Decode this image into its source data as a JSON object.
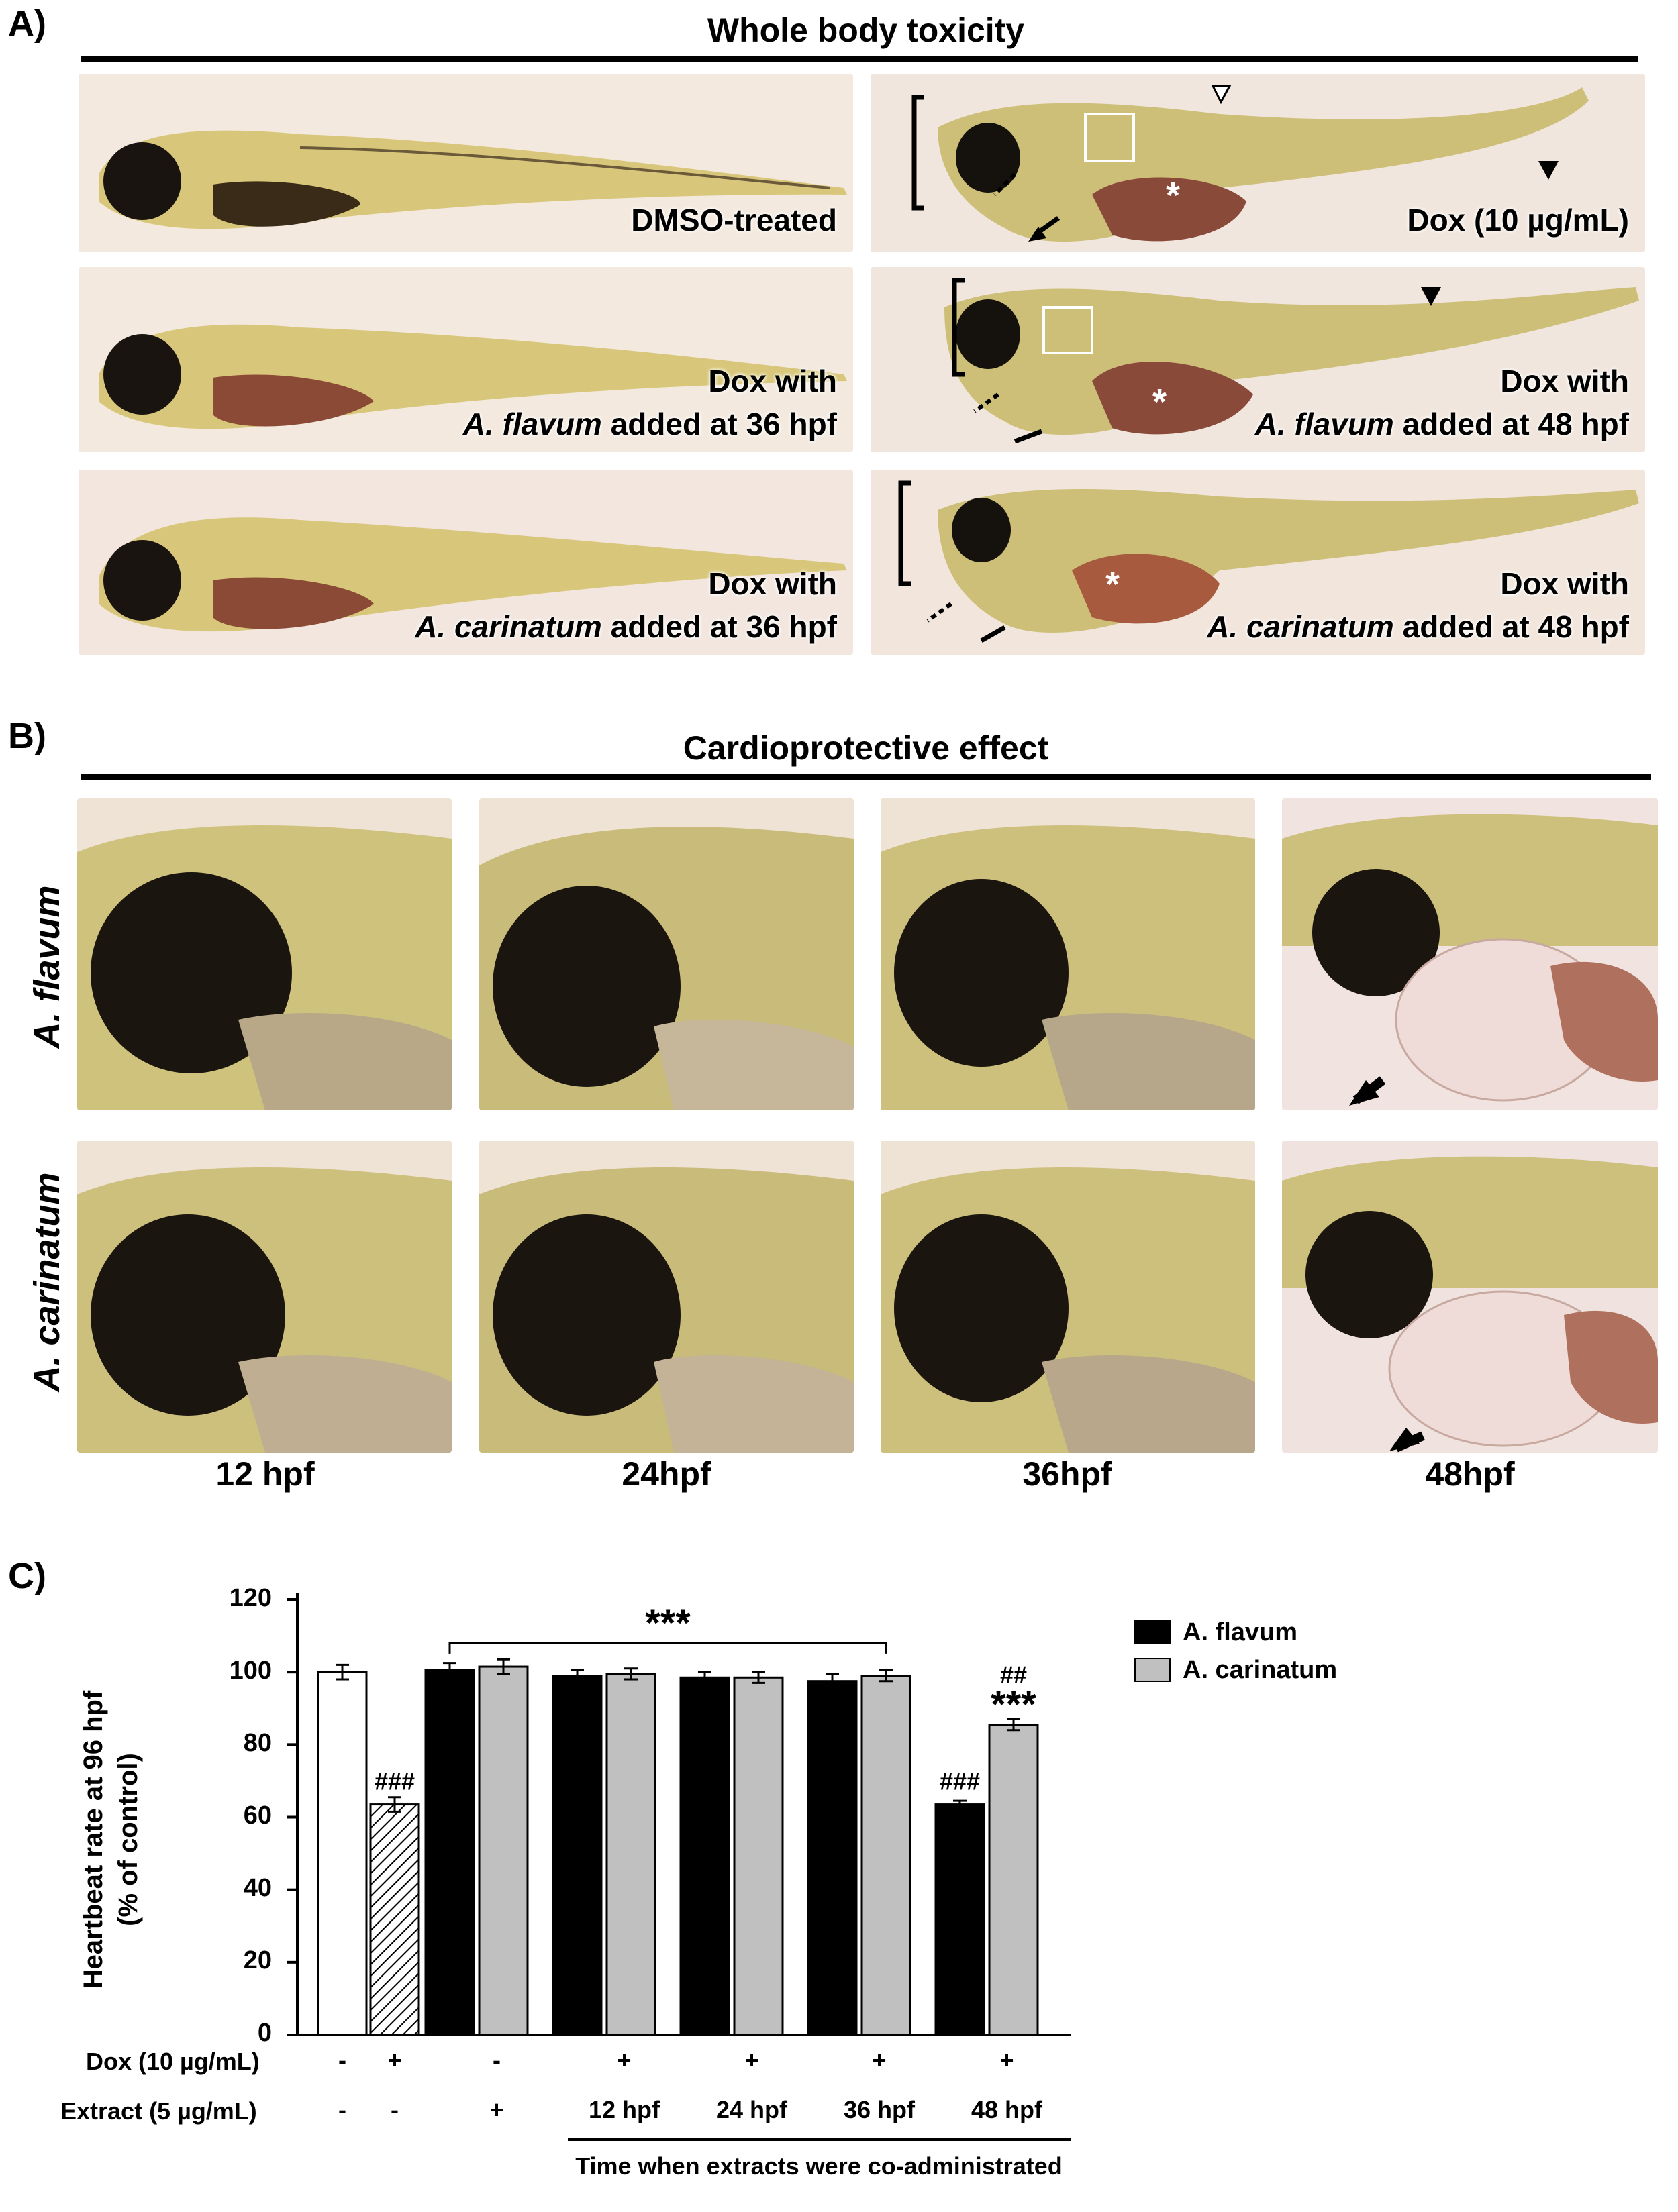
{
  "panelA": {
    "letter": "A)",
    "title": "Whole body toxicity",
    "images": [
      {
        "lines": [
          "DMSO-treated"
        ],
        "italic": [
          false
        ]
      },
      {
        "lines": [
          "Dox (10 µg/mL)"
        ],
        "italic": [
          false
        ]
      },
      {
        "lines": [
          "Dox with",
          "A. flavum added at 36 hpf"
        ],
        "species": "A. flavum",
        "rest": " added at 36 hpf"
      },
      {
        "lines": [
          "Dox with",
          "A. flavum added at 48 hpf"
        ],
        "species": "A. flavum",
        "rest": " added at 48 hpf"
      },
      {
        "lines": [
          "Dox with",
          "A. carinatum added at 36 hpf"
        ],
        "species": "A. carinatum",
        "rest": " added at 36 hpf"
      },
      {
        "lines": [
          "Dox with",
          "A. carinatum added at 48 hpf"
        ],
        "species": "A. carinatum",
        "rest": " added at 48 hpf"
      }
    ],
    "dox_with": "Dox with",
    "dmso": "DMSO-treated",
    "dox10": "Dox (10 µg/mL)",
    "asterisk": "*"
  },
  "panelB": {
    "letter": "B)",
    "title": "Cardioprotective effect",
    "rows": [
      "A. flavum",
      "A. carinatum"
    ],
    "timepoints": [
      "12 hpf",
      "24hpf",
      "36hpf",
      "48hpf"
    ]
  },
  "panelC": {
    "letter": "C)",
    "chart_data": {
      "type": "bar",
      "ylabel_line1": "Heartbeat rate at 96 hpf",
      "ylabel_line2": "(% of control)",
      "ylim": [
        0,
        120
      ],
      "yticks": [
        "0",
        "20",
        "40",
        "60",
        "80",
        "100",
        "120"
      ],
      "legend": [
        "A. flavum",
        "A. carinatum"
      ],
      "legend_placement": "top-right",
      "controls": [
        {
          "name": "control",
          "value": 100,
          "error": 2,
          "fill": "#ffffff"
        },
        {
          "name": "dox",
          "value": 63.5,
          "error": 2,
          "fill": "hatched",
          "annotation": "###"
        }
      ],
      "groups": [
        {
          "label": "+",
          "flavum": 100.5,
          "carinatum": 101.5,
          "err_f": 2,
          "err_c": 2
        },
        {
          "label": "12 hpf",
          "flavum": 99,
          "carinatum": 99.5,
          "err_f": 1.5,
          "err_c": 1.5
        },
        {
          "label": "24 hpf",
          "flavum": 98.5,
          "carinatum": 98.5,
          "err_f": 1.5,
          "err_c": 1.5
        },
        {
          "label": "36 hpf",
          "flavum": 97.5,
          "carinatum": 99,
          "err_f": 2,
          "err_c": 1.5
        },
        {
          "label": "48 hpf",
          "flavum": 63.5,
          "carinatum": 85.5,
          "err_f": 1,
          "err_c": 1.5
        }
      ],
      "bracket_label": "***",
      "ann_48_flavum": "###",
      "ann_48_carinatum_top": "##",
      "ann_48_carinatum_bottom": "***",
      "colors": {
        "flavum": "#000000",
        "carinatum": "#c0c0c0"
      },
      "dox_row_label": "Dox (10 µg/mL)",
      "dox_row": [
        "-",
        "+",
        "-",
        "+",
        "+",
        "+",
        "+"
      ],
      "extract_row_label": "Extract (5 µg/mL)",
      "extract_row": [
        "-",
        "-",
        "+",
        "12 hpf",
        "24 hpf",
        "36 hpf",
        "48 hpf"
      ],
      "xlabel": "Time when extracts were co-administrated"
    }
  }
}
